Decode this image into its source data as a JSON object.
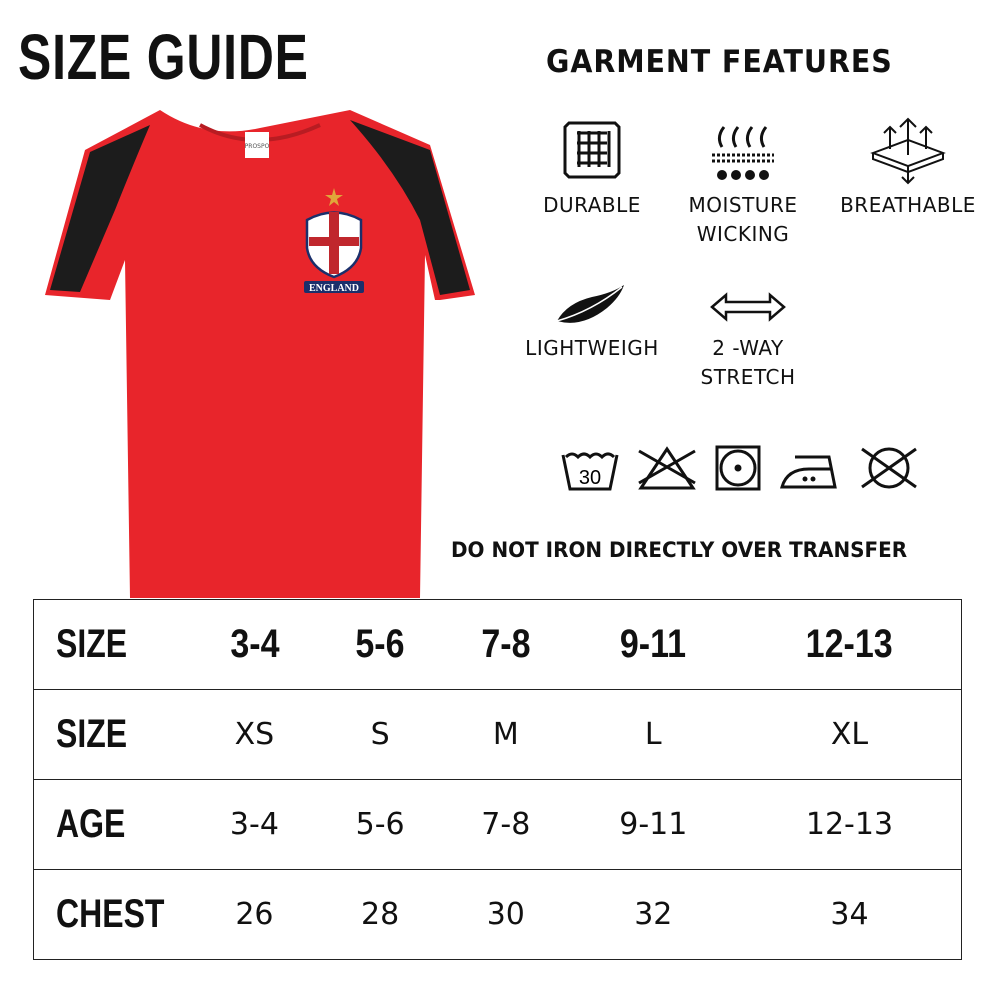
{
  "title": "SIZE GUIDE",
  "features_title": "GARMENT FEATURES",
  "shirt": {
    "label_text": "PROSPO",
    "badge_text": "ENGLAND",
    "colors": {
      "body": "#e8252b",
      "panels": "#1c1c1c",
      "cross": "#c0272d",
      "shield_border": "#1b2f6b",
      "star": "#e0a63a"
    }
  },
  "features": [
    {
      "icon": "durable-mesh-icon",
      "line1": "DURABLE",
      "line2": ""
    },
    {
      "icon": "moisture-wicking-icon",
      "line1": "MOISTURE",
      "line2": "WICKING"
    },
    {
      "icon": "breathable-icon",
      "line1": "BREATHABLE",
      "line2": ""
    },
    {
      "icon": "feather-icon",
      "line1": "LIGHTWEIGH",
      "line2": ""
    },
    {
      "icon": "two-way-arrow-icon",
      "line1": "2 -WAY",
      "line2": "STRETCH"
    }
  ],
  "care": {
    "wash_temp": "30",
    "icons": [
      "wash-30-icon",
      "do-not-bleach-icon",
      "tumble-dry-icon",
      "iron-low-icon",
      "do-not-dry-clean-icon"
    ]
  },
  "note": "DO NOT IRON DIRECTLY OVER TRANSFER",
  "table": {
    "rows": [
      {
        "label": "SIZE",
        "values": [
          "3-4",
          "5-6",
          "7-8",
          "9-11",
          "12-13"
        ]
      },
      {
        "label": "SIZE",
        "values": [
          "XS",
          "S",
          "M",
          "L",
          "XL"
        ]
      },
      {
        "label": "AGE",
        "values": [
          "3-4",
          "5-6",
          "7-8",
          "9-11",
          "12-13"
        ]
      },
      {
        "label": "CHEST",
        "values": [
          "26",
          "28",
          "30",
          "32",
          "34"
        ]
      }
    ]
  }
}
